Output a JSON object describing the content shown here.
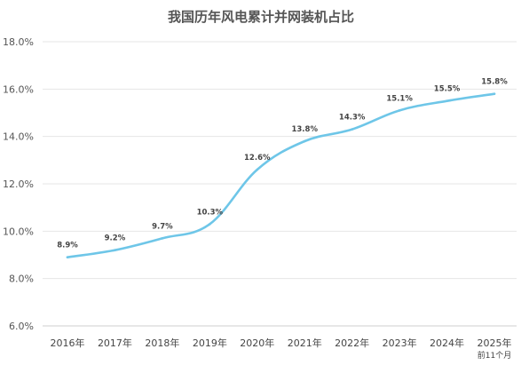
{
  "chart_data": {
    "type": "line",
    "title": "我国历年风电累计并网装机占比",
    "categories": [
      "2016年",
      "2017年",
      "2018年",
      "2019年",
      "2020年",
      "2021年",
      "2022年",
      "2023年",
      "2024年",
      "2025年"
    ],
    "category_sublabels": [
      "",
      "",
      "",
      "",
      "",
      "",
      "",
      "",
      "",
      "前11个月"
    ],
    "series": [
      {
        "values": [
          8.9,
          9.2,
          9.7,
          10.3,
          12.6,
          13.8,
          14.3,
          15.1,
          15.5,
          15.8
        ],
        "data_labels": [
          "8.9%",
          "9.2%",
          "9.7%",
          "10.3%",
          "12.6%",
          "13.8%",
          "14.3%",
          "15.1%",
          "15.5%",
          "15.8%"
        ],
        "color": "#6ec6e8"
      }
    ],
    "yticks": [
      6,
      8,
      10,
      12,
      14,
      16,
      18
    ],
    "ytick_labels": [
      "6.0%",
      "8.0%",
      "10.0%",
      "12.0%",
      "14.0%",
      "16.0%",
      "18.0%"
    ],
    "ylim": [
      6,
      18
    ],
    "grid": true,
    "legend": "none"
  }
}
